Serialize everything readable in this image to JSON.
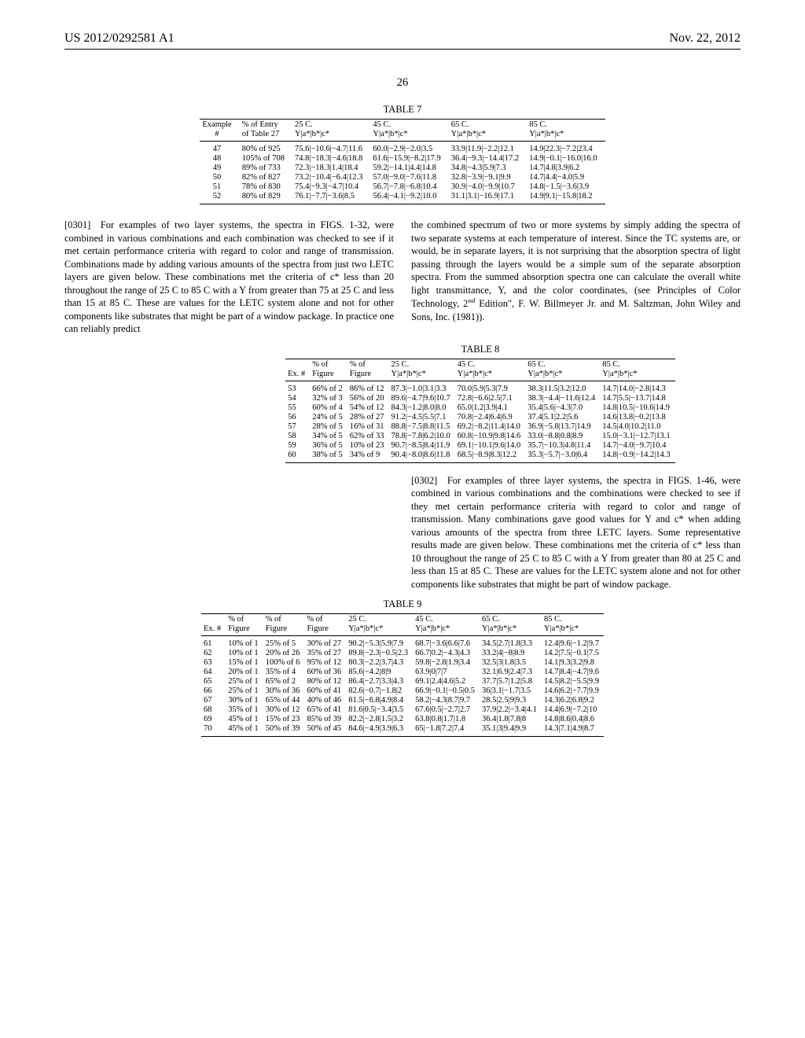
{
  "header": {
    "pub_number": "US 2012/0292581 A1",
    "pub_date": "Nov. 22, 2012",
    "page_number": "26"
  },
  "paragraphs": {
    "p0301_left": "[0301] For examples of two layer systems, the spectra in FIGS. 1-32, were combined in various combinations and each combination was checked to see if it met certain performance criteria with regard to color and range of transmission. Combinations made by adding various amounts of the spectra from just two LETC layers are given below. These combinations met the criteria of c* less than 20 throughout the range of 25 C to 85 C with a Y from greater than 75 at 25 C and less than 15 at 85 C. These are values for the LETC system alone and not for other components like substrates that might be part of a window package. In practice one can reliably predict",
    "p0301_right": "the combined spectrum of two or more systems by simply adding the spectra of two separate systems at each temperature of interest. Since the TC systems are, or would, be in separate layers, it is not surprising that the absorption spectra of light passing through the layers would be a simple sum of the separate absorption spectra. From the summed absorption spectra one can calculate the overall white light transmittance, Y, and the color coordinates, (see Principles of Color Technology, 2",
    "p0301_right_tail": " Edition\", F. W. Billmeyer Jr. and M. Saltzman, John Wiley and Sons, Inc. (1981)).",
    "p0302": "[0302] For examples of three layer systems, the spectra in FIGS. 1-46, were combined in various combinations and the combinations were checked to see if they met certain performance criteria with regard to color and range of transmission. Many combinations gave good values for Y and c* when adding various amounts of the spectra from three LETC layers. Some representative results made are given below. These combinations met the criteria of c* less than 10 throughout the range of 25 C to 85 C with a Y from greater than 80 at 25 C and less than 15 at 85 C. These are values for the LETC system alone and not for other components like substrates that might be part of window package."
  },
  "table7": {
    "caption": "TABLE 7",
    "headers_row1": [
      "Example",
      "% of Entry",
      "25 C.",
      "45 C.",
      "65 C.",
      "85 C."
    ],
    "headers_row2": [
      "#",
      "of Table 27",
      "Y|a*|b*|c*",
      "Y|a*|b*|c*",
      "Y|a*|b*|c*",
      "Y|a*|b*|c*"
    ],
    "rows": [
      [
        "47",
        "80% of 925",
        "75.6|−10.6|−4.7|11.6",
        "60.0|−2.9|−2.0|3.5",
        "33.9|11.9|−2.2|12.1",
        "14.9|22.3|−7.2|23.4"
      ],
      [
        "48",
        "105% of 708",
        "74.8|−18.3|−4.6|18.8",
        "61.6|−15.9|−8.2|17.9",
        "36.4|−9.3|−14.4|17.2",
        "14.9|−0.1|−16.0|16.0"
      ],
      [
        "49",
        "89% of 733",
        "72.3|−18.3|1.4|18.4",
        "59.2|−14.1|4.4|14.8",
        "34.8|−4.3|5.9|7.3",
        "14.7|4.8|3.9|6.2"
      ],
      [
        "50",
        "82% of 827",
        "73.2|−10.4|−6.4|12.3",
        "57.0|−9.0|−7.6|11.8",
        "32.8|−3.9|−9.1|9.9",
        "14.7|4.4|−4.0|5.9"
      ],
      [
        "51",
        "78% of 830",
        "75.4|−9.3|−4.7|10.4",
        "56.7|−7.8|−6.8|10.4",
        "30.9|−4.0|−9.9|10.7",
        "14.8|−1.5|−3.6|3.9"
      ],
      [
        "52",
        "80% of 829",
        "76.1|−7.7|−3.6|8.5",
        "56.4|−4.1|−9.2|10.0",
        "31.1|3.1|−16.9|17.1",
        "14.9|9.1|−15.8|18.2"
      ]
    ]
  },
  "table8": {
    "caption": "TABLE 8",
    "headers_row1": [
      "",
      "% of",
      "% of",
      "25 C.",
      "45 C.",
      "65 C.",
      "85 C."
    ],
    "headers_row2": [
      "Ex. #",
      "Figure",
      "Figure",
      "Y|a*|b*|c*",
      "Y|a*|b*|c*",
      "Y|a*|b*|c*",
      "Y|a*|b*|c*"
    ],
    "rows": [
      [
        "53",
        "66% of 2",
        "86% of 12",
        "87.3|−1.0|3.1|3.3",
        "70.0|5.9|5.3|7.9",
        "38.3|11.5|3.2|12.0",
        "14.7|14.0|−2.8|14.3"
      ],
      [
        "54",
        "32% of 3",
        "56% of 20",
        "89.6|−4.7|9.6|10.7",
        "72.8|−6.6|2.5|7.1",
        "38.3|−4.4|−11.6|12.4",
        "14.7|5.5|−13.7|14.8"
      ],
      [
        "55",
        "60% of 4",
        "54% of 12",
        "84.3|−1.2|8.0|8.0",
        "65.0|1.2|3.9|4.1",
        "35.4|5.6|−4.3|7.0",
        "14.8|10.5|−10.6|14.9"
      ],
      [
        "56",
        "24% of 5",
        "28% of 27",
        "91.2|−4.5|5.5|7.1",
        "70.8|−2.4|6.4|6.9",
        "37.4|5.1|2.2|5.6",
        "14.6|13.8|−0.2|13.8"
      ],
      [
        "57",
        "28% of 5",
        "16% of 31",
        "88.8|−7.5|8.8|11.5",
        "69.2|−8.2|11.4|14.0",
        "36.9|−5.8|13.7|14.9",
        "14.5|4.0|10.2|11.0"
      ],
      [
        "58",
        "34% of 5",
        "62% of 33",
        "78.8|−7.8|6.2|10.0",
        "60.8|−10.9|9.8|14.6",
        "33.0|−8.8|0.8|8.9",
        "15.0|−3.1|−12.7|13.1"
      ],
      [
        "59",
        "36% of 5",
        "10% of 23",
        "90.7|−8.5|8.4|11.9",
        "69.1|−10.1|9.6|14.0",
        "35.7|−10.3|4.8|11.4",
        "14.7|−4.0|−9.7|10.4"
      ],
      [
        "60",
        "38% of 5",
        "34% of 9",
        "90.4|−8.0|8.6|11.8",
        "68.5|−8.9|8.3|12.2",
        "35.3|−5.7|−3.0|6.4",
        "14.8|−0.9|−14.2|14.3"
      ]
    ]
  },
  "table9": {
    "caption": "TABLE 9",
    "headers_row1": [
      "",
      "% of",
      "% of",
      "% of",
      "25 C.",
      "45 C.",
      "65 C.",
      "85 C."
    ],
    "headers_row2": [
      "Ex. #",
      "Figure",
      "Figure",
      "Figure",
      "Y|a*|b*|c*",
      "Y|a*|b*|c*",
      "Y|a*|b*|c*",
      "Y|a*|b*|c*"
    ],
    "rows": [
      [
        "61",
        "10% of 1",
        "25% of 5",
        "30% of 27",
        "90.2|−5.3|5.9|7.9",
        "68.7|−3.6|6.6|7.6",
        "34.5|2.7|1.8|3.3",
        "12.4|9.6|−1.2|9.7"
      ],
      [
        "62",
        "10% of 1",
        "20% of 26",
        "35% of 27",
        "89.8|−2.3|−0.5|2.3",
        "66.7|0.2|−4.3|4.3",
        "33.2|4|−8|8.9",
        "14.2|7.5|−0.1|7.5"
      ],
      [
        "63",
        "15% of 1",
        "100% of 6",
        "95% of 12",
        "80.3|−2.2|3.7|4.3",
        "59.8|−2.8|1.9|3.4",
        "32.5|3|1.8|3.5",
        "14.1|9.3|3.2|9.8"
      ],
      [
        "64",
        "20% of 1",
        "35% of 4",
        "60% of 36",
        "85.6|−4.2|8|9",
        "63.9|0|7|7",
        "32.1|6.9|2.4|7.3",
        "14.7|8.4|−4.7|9.6"
      ],
      [
        "65",
        "25% of 1",
        "65% of 2",
        "80% of 12",
        "86.4|−2.7|3.3|4.3",
        "69.1|2.4|4.6|5.2",
        "37.7|5.7|1.2|5.8",
        "14.5|8.2|−5.5|9.9"
      ],
      [
        "66",
        "25% of 1",
        "30% of 36",
        "60% of 41",
        "82.6|−0.7|−1.8|2",
        "66.9|−0.1|−0.5|0.5",
        "36|3.1|−1.7|3.5",
        "14.6|6.2|−7.7|9.9"
      ],
      [
        "67",
        "30% of 1",
        "65% of 44",
        "40% of 46",
        "81.5|−6.8|4.9|8.4",
        "58.2|−4.3|8.7|9.7",
        "28.5|2.5|9|9.3",
        "14.3|6.2|6.8|9.2"
      ],
      [
        "68",
        "35% of 1",
        "30% of 12",
        "65% of 41",
        "81.6|0.5|−3.4|3.5",
        "67.6|0.5|−2.7|2.7",
        "37.9|2.2|−3.4|4.1",
        "14.4|6.9|−7.2|10"
      ],
      [
        "69",
        "45% of 1",
        "15% of 23",
        "85% of 39",
        "82.2|−2.8|1.5|3.2",
        "63.8|0.8|1.7|1.8",
        "36.4|1.8|7.8|8",
        "14.8|8.6|0.4|8.6"
      ],
      [
        "70",
        "45% of 1",
        "50% of 39",
        "50% of 45",
        "84.6|−4.9|3.9|6.3",
        "65|−1.8|7.2|7.4",
        "35.1|3|9.4|9.9",
        "14.3|7.1|4.9|8.7"
      ]
    ]
  }
}
